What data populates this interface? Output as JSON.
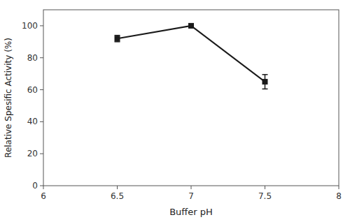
{
  "chart_data": {
    "type": "line",
    "x": [
      6.5,
      7.0,
      7.5
    ],
    "values": [
      92,
      100,
      65
    ],
    "yerr": [
      2.0,
      1.0,
      4.5
    ],
    "xlabel": "Buffer pH",
    "ylabel": "Relative Spesific Activity (%)",
    "xlim": [
      6,
      8
    ],
    "ylim": [
      0,
      110
    ],
    "xticks": [
      6,
      6.5,
      7,
      7.5,
      8
    ],
    "yticks": [
      0,
      20,
      40,
      60,
      80,
      100
    ],
    "color": "#1a1a1a",
    "marker": "square"
  }
}
